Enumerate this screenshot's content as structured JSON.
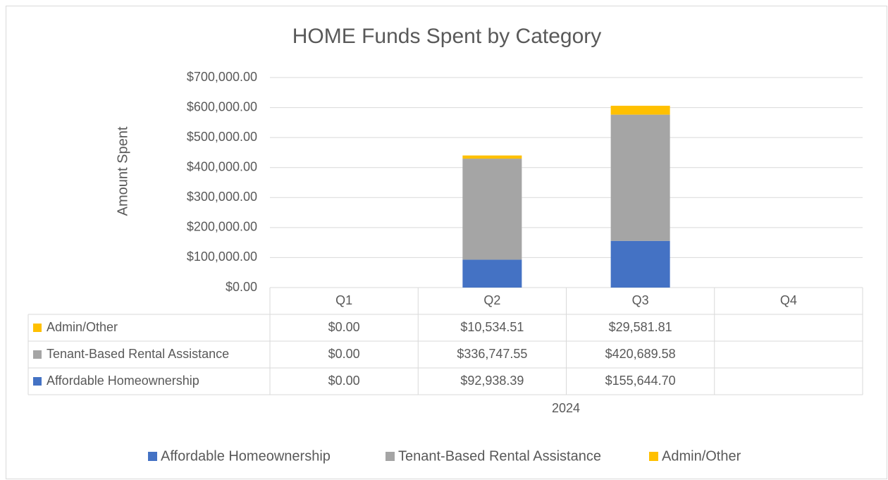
{
  "chart_data": {
    "type": "stacked_bar",
    "title": "HOME Funds Spent by Category",
    "y_label": "Amount Spent",
    "x_label": "2024",
    "categories": [
      "Q1",
      "Q2",
      "Q3",
      "Q4"
    ],
    "series": [
      {
        "name": "Affordable Homeownership",
        "color": "#4472c4",
        "values": [
          0,
          92938.39,
          155644.7,
          null
        ],
        "value_labels": [
          "$0.00",
          "$92,938.39",
          "$155,644.70",
          null
        ]
      },
      {
        "name": "Tenant-Based Rental Assistance",
        "color": "#a5a5a5",
        "values": [
          0,
          336747.55,
          420689.58,
          null
        ],
        "value_labels": [
          "$0.00",
          "$336,747.55",
          "$420,689.58",
          null
        ]
      },
      {
        "name": "Admin/Other",
        "color": "#ffc000",
        "values": [
          0,
          10534.51,
          29581.81,
          null
        ],
        "value_labels": [
          "$0.00",
          "$10,534.51",
          "$29,581.81",
          null
        ]
      }
    ],
    "ylim": [
      0,
      700000
    ],
    "yticks": [
      {
        "value": 0,
        "label": "$0.00"
      },
      {
        "value": 100000,
        "label": "$100,000.00"
      },
      {
        "value": 200000,
        "label": "$200,000.00"
      },
      {
        "value": 300000,
        "label": "$300,000.00"
      },
      {
        "value": 400000,
        "label": "$400,000.00"
      },
      {
        "value": 500000,
        "label": "$500,000.00"
      },
      {
        "value": 600000,
        "label": "$600,000.00"
      },
      {
        "value": 700000,
        "label": "$700,000.00"
      }
    ],
    "grid": true,
    "legend": "bottom"
  }
}
